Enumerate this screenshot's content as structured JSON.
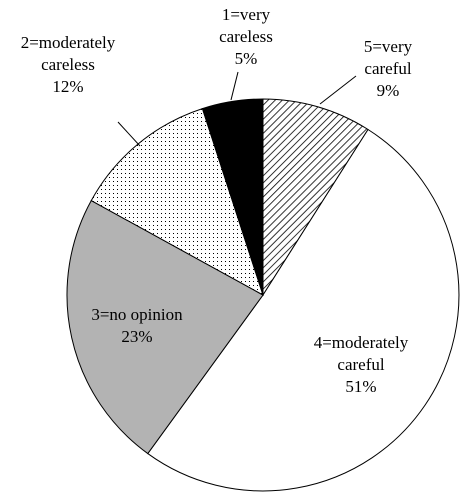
{
  "chart_data": {
    "type": "pie",
    "start": "top",
    "direction": "clockwise",
    "slices": [
      {
        "name": "5=very careful",
        "value": 9,
        "label_lines": [
          "5=very",
          "careful",
          "9%"
        ],
        "fill": "hatch"
      },
      {
        "name": "4=moderately careful",
        "value": 51,
        "label_lines": [
          "4=moderately",
          "careful",
          "51%"
        ],
        "fill": "#ffffff"
      },
      {
        "name": "3=no opinion",
        "value": 23,
        "label_lines": [
          "3=no opinion",
          "23%"
        ],
        "fill": "#b3b3b3"
      },
      {
        "name": "2=moderately careless",
        "value": 12,
        "label_lines": [
          "2=moderately",
          "careless",
          "12%"
        ],
        "fill": "dots"
      },
      {
        "name": "1=very careless",
        "value": 5,
        "label_lines": [
          "1=very",
          "careless",
          "5%"
        ],
        "fill": "#000000"
      }
    ]
  }
}
